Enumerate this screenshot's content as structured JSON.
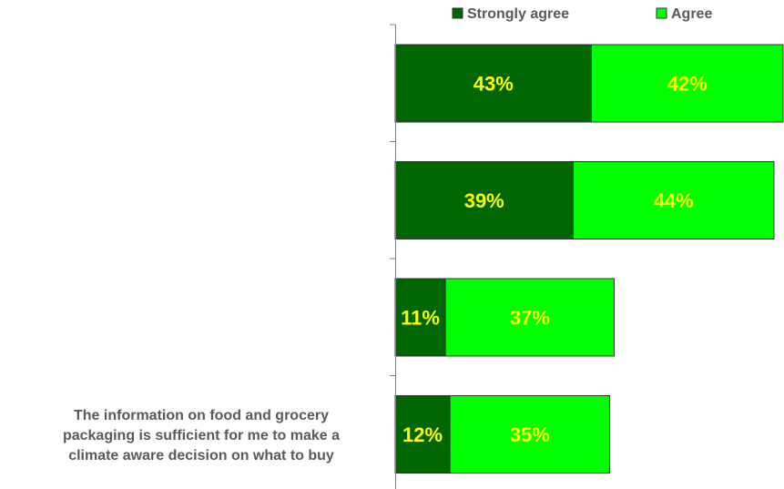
{
  "chart_data": {
    "type": "bar",
    "orientation": "horizontal",
    "stacked": true,
    "categories": [
      "",
      "",
      "",
      "The information on food and grocery packaging is sufficient for me to make a climate aware decision on what to buy"
    ],
    "series": [
      {
        "name": "Strongly agree",
        "color": "#006600",
        "values": [
          43,
          39,
          11,
          12
        ],
        "labels": [
          "43%",
          "39%",
          "11%",
          "12%"
        ]
      },
      {
        "name": "Agree",
        "color": "#00ff00",
        "values": [
          42,
          44,
          37,
          35
        ],
        "labels": [
          "42%",
          "44%",
          "37%",
          "35%"
        ]
      }
    ],
    "legend_position": "top",
    "grid": false,
    "xlim": [
      0,
      85
    ],
    "label_color": "#ffff00",
    "category_label_lines": [
      [],
      [],
      [],
      [
        "The information on food and grocery",
        "packaging is sufficient for me to make a",
        "climate aware decision on what to buy"
      ]
    ]
  }
}
